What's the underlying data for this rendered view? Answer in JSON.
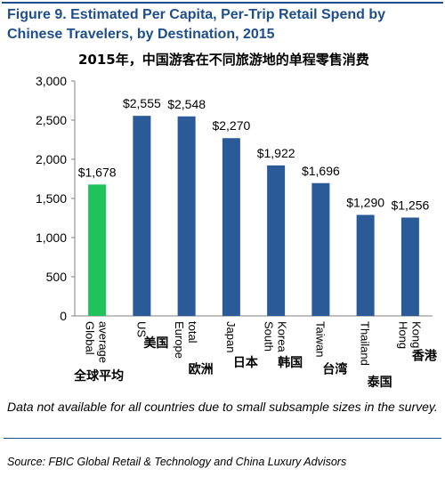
{
  "title": "Figure 9. Estimated Per Capita, Per-Trip Retail Spend by Chinese Travelers, by Destination, 2015",
  "subtitle_cn": "2015年，中国游客在不同旅游地的单程零售消费",
  "note": "Data not available for all countries due to small subsample sizes in the survey.",
  "source": "Source: FBIC Global Retail & Technology and China Luxury Advisors",
  "colors": {
    "highlight": "#1fc25b",
    "bar": "#2a5a97",
    "title": "#1f4e8c"
  },
  "chart_data": {
    "type": "bar",
    "title": "Figure 9. Estimated Per Capita, Per-Trip Retail Spend by Chinese Travelers, by Destination, 2015",
    "categories": [
      "Global average",
      "US",
      "Europe total",
      "Japan",
      "South Korea",
      "Taiwan",
      "Thailand",
      "Hong Kong"
    ],
    "categories_cn": [
      "全球平均",
      "美国",
      "欧洲",
      "日本",
      "韩国",
      "台湾",
      "泰国",
      "香港"
    ],
    "values": [
      1678,
      2555,
      2548,
      2270,
      1922,
      1696,
      1290,
      1256
    ],
    "data_labels": [
      "$1,678",
      "$2,555",
      "$2,548",
      "$2,270",
      "$1,922",
      "$1,696",
      "$1,290",
      "$1,256"
    ],
    "highlight_index": 0,
    "ylim": [
      0,
      3000
    ],
    "yticks": [
      "0",
      "500",
      "1,000",
      "1,500",
      "2,000",
      "2,500",
      "3,000"
    ],
    "ytick_values": [
      0,
      500,
      1000,
      1500,
      2000,
      2500,
      3000
    ],
    "xlabel": "",
    "ylabel": "",
    "grid": false
  }
}
